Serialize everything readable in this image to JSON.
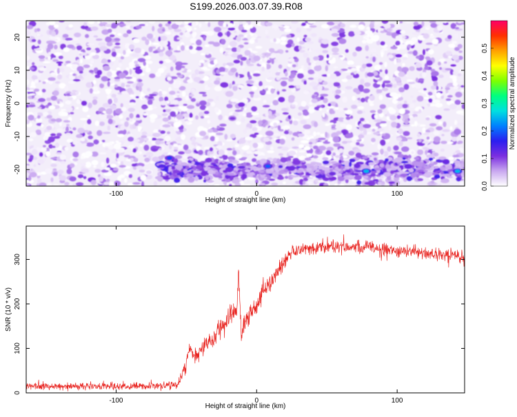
{
  "title": "S199.2026.003.07.39.R08",
  "colors": {
    "background": "#ffffff",
    "series_line": "#e8231f",
    "axis": "#000000",
    "spec_base": "#f3eefa"
  },
  "chart_data": [
    {
      "type": "heatmap",
      "name": "spectrogram",
      "xlabel": "Height of straight line (km)",
      "ylabel": "Frequency (Hz)",
      "xlim": [
        -164,
        148
      ],
      "ylim": [
        -25,
        25
      ],
      "xticks": [
        -100,
        0,
        100
      ],
      "yticks": [
        -20,
        -10,
        0,
        10,
        20
      ],
      "colorbar": {
        "label": "Normalized spectral amplitude",
        "range": [
          0,
          0.6
        ],
        "ticks": [
          0,
          0.1,
          0.2,
          0.3,
          0.4,
          0.5
        ],
        "tick_labels": [
          "0.0",
          "0.1",
          "0.2",
          "0.3",
          "0.4",
          "0.5"
        ],
        "colormap": [
          "#ffffff",
          "#c9a8f0",
          "#7b2fe0",
          "#2b1ef0",
          "#0080ff",
          "#00e0e0",
          "#00ff80",
          "#7fff00",
          "#ffff00",
          "#ffa000",
          "#ff3000",
          "#ff0066"
        ]
      },
      "description_of_values": "Mostly noise (0.0–0.1) everywhere; a band of stronger amplitude near -20 Hz from about -70 km to 148 km",
      "band": {
        "frequency": -20,
        "x_range": [
          -70,
          148
        ],
        "hotspots": [
          {
            "x": -62,
            "y": -16.5,
            "value": 0.18
          },
          {
            "x": 8,
            "y": -19,
            "value": 0.2
          },
          {
            "x": 78,
            "y": -20.5,
            "value": 0.25
          },
          {
            "x": 143,
            "y": -20.5,
            "value": 0.25
          }
        ]
      }
    },
    {
      "type": "line",
      "name": "snr",
      "xlabel": "Height of straight line (km)",
      "ylabel": "SNR (10 * v/v)",
      "xlim": [
        -164,
        148
      ],
      "ylim": [
        0,
        375
      ],
      "xticks": [
        -100,
        0,
        100
      ],
      "yticks": [
        0,
        100,
        200,
        300
      ],
      "series": [
        {
          "name": "SNR",
          "x": [
            -164,
            -130,
            -100,
            -70,
            -56,
            -50,
            -48,
            -45,
            -40,
            -30,
            -25,
            -20,
            -16,
            -14,
            -13,
            -11,
            -8,
            -4,
            0,
            5,
            10,
            15,
            20,
            25,
            30,
            35,
            40,
            45,
            50,
            60,
            70,
            80,
            90,
            100,
            110,
            120,
            130,
            140,
            146,
            148
          ],
          "values": [
            15,
            15,
            15,
            16,
            18,
            60,
            105,
            80,
            95,
            125,
            150,
            170,
            185,
            180,
            280,
            125,
            160,
            180,
            200,
            225,
            250,
            270,
            295,
            315,
            322,
            325,
            327,
            330,
            328,
            330,
            325,
            328,
            322,
            320,
            318,
            315,
            312,
            310,
            305,
            295
          ],
          "noise_amplitude": [
            7,
            7,
            7,
            7,
            8,
            14,
            18,
            16,
            16,
            18,
            20,
            20,
            22,
            22,
            22,
            22,
            22,
            20,
            20,
            20,
            18,
            16,
            14,
            12,
            12,
            12,
            12,
            13,
            13,
            13,
            12,
            12,
            12,
            12,
            12,
            12,
            12,
            12,
            12,
            12
          ]
        }
      ]
    }
  ]
}
